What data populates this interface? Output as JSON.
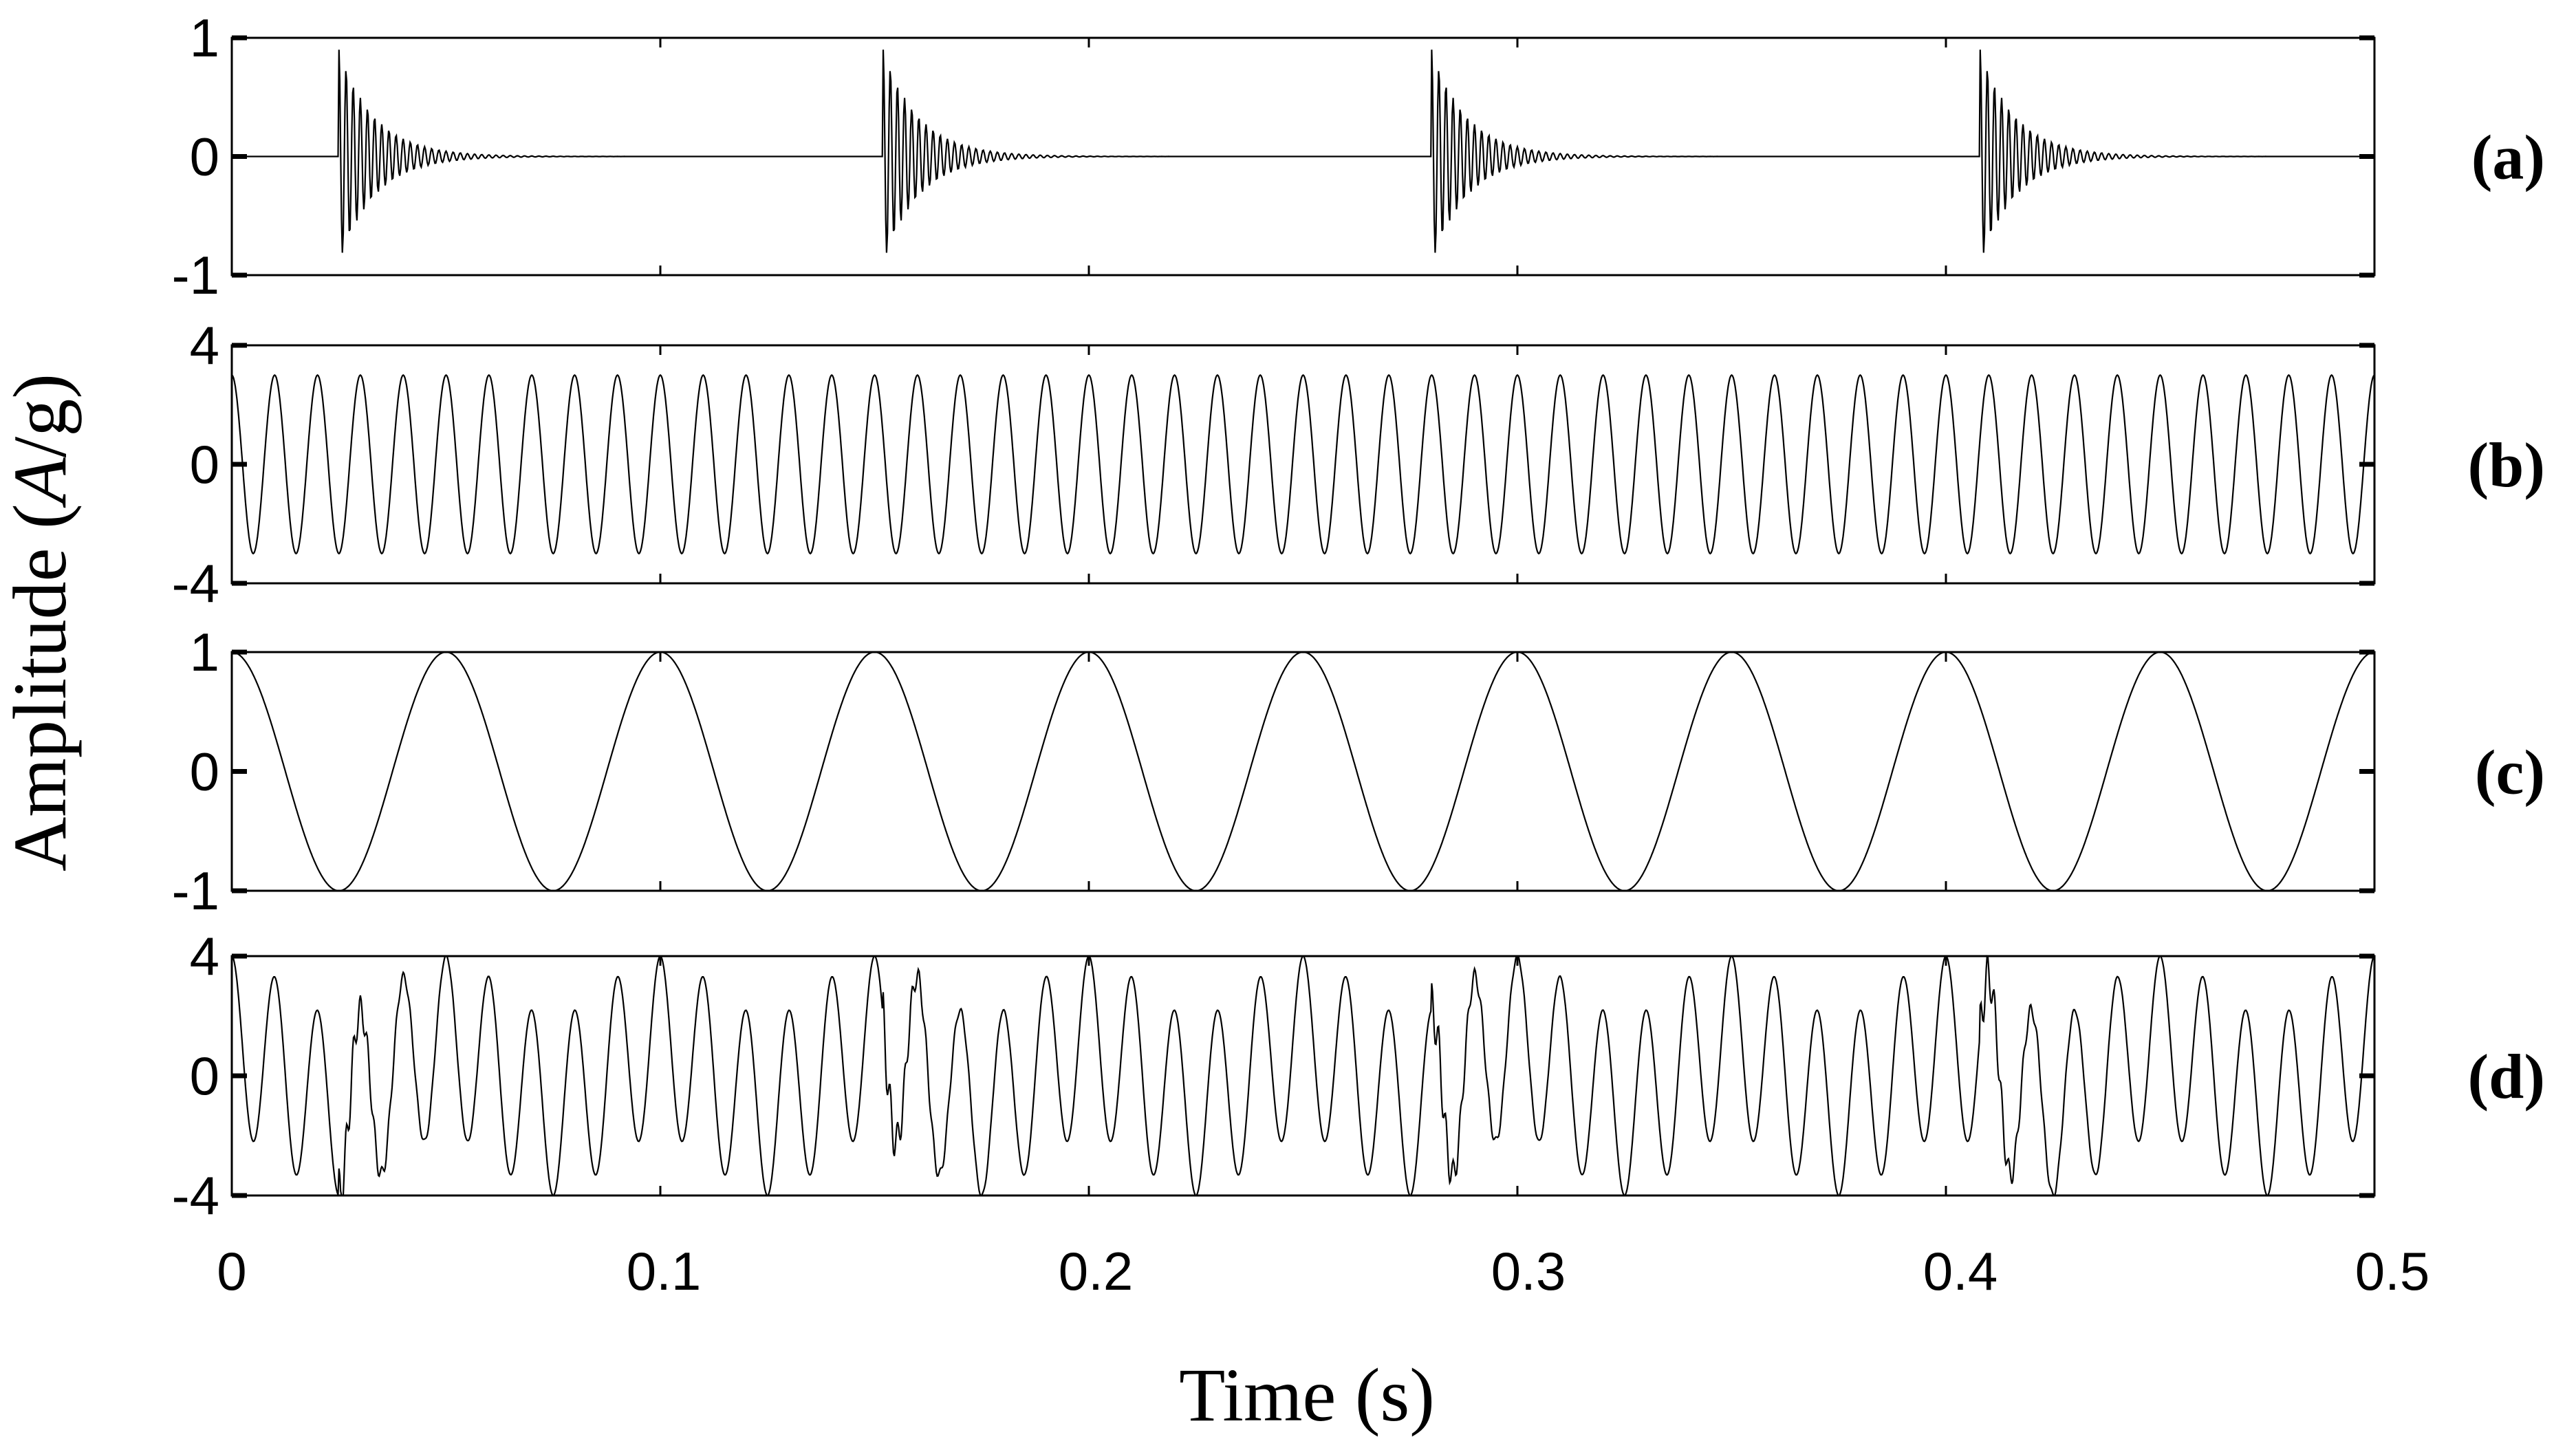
{
  "figure": {
    "ylabel_parts": [
      "Amplitude (",
      "A",
      "/g)"
    ],
    "xlabel": "Time (s)",
    "x_ticks": [
      "0",
      "0.1",
      "0.2",
      "0.3",
      "0.4",
      "0.5"
    ],
    "colors": {
      "line": "#000000",
      "background": "#ffffff"
    }
  },
  "chart_data": [
    {
      "type": "line",
      "panel_label": "(a)",
      "description_of_signal": "periodic impulsive transients with exponential decay",
      "xlim": [
        0,
        0.5
      ],
      "ylim": [
        -1,
        1
      ],
      "y_ticks": [
        "1",
        "0",
        "-1"
      ],
      "impulse_times": [
        0.025,
        0.152,
        0.28,
        0.408
      ],
      "impulse_amplitude": 0.9,
      "resonance_hz": 600,
      "decay_rate": 120
    },
    {
      "type": "line",
      "panel_label": "(b)",
      "description_of_signal": "sampled sinusoid",
      "xlim": [
        0,
        0.5
      ],
      "ylim": [
        -4,
        4
      ],
      "y_ticks": [
        "4",
        "0",
        "-4"
      ],
      "amplitude": 3,
      "frequency_hz": 100
    },
    {
      "type": "line",
      "panel_label": "(c)",
      "description_of_signal": "sampled cosine",
      "xlim": [
        0,
        0.5
      ],
      "ylim": [
        -1,
        1
      ],
      "y_ticks": [
        "1",
        "0",
        "-1"
      ],
      "amplitude": 1,
      "frequency_hz": 20
    },
    {
      "type": "line",
      "panel_label": "(d)",
      "description_of_signal": "sum of (a), (b) and (c)",
      "xlim": [
        0,
        0.5
      ],
      "ylim": [
        -4,
        4
      ],
      "y_ticks": [
        "4",
        "0",
        "-4"
      ]
    }
  ]
}
